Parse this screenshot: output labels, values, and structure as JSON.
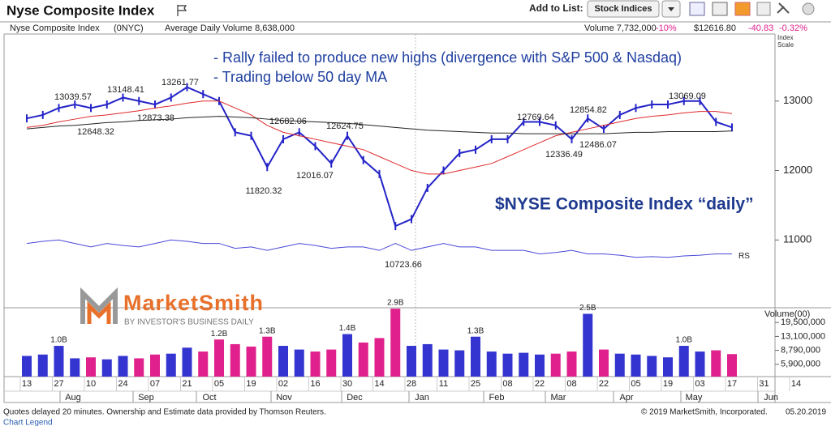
{
  "header": {
    "title": "Nyse Composite Index",
    "add_label": "Add to List:",
    "list_button": "Stock Indices"
  },
  "info_bar": {
    "name": "Nyse Composite Index",
    "symbol": "(0NYC)",
    "avg_volume": "Average Daily Volume 8,638,000",
    "volume": "Volume 7,732,000",
    "volume_change": "-10%",
    "price": "$12616.80",
    "change": "-40.83",
    "change_pct": "-0.32%",
    "scale_label": "Index Scale"
  },
  "notes": [
    "- Rally failed to produce new highs (divergence with S&P 500 & Nasdaq)",
    "- Trading below 50 day MA"
  ],
  "chart_label": "$NYSE Composite Index “daily”",
  "logo": {
    "name": "MarketSmith",
    "tagline": "BY INVESTOR'S BUSINESS DAILY"
  },
  "chart_data": [
    {
      "type": "line",
      "ylim": [
        10024,
        13965
      ],
      "yticks": [
        11000,
        12000,
        13000
      ],
      "series": [
        {
          "color": "#2424c8",
          "values": [
            12750,
            12800,
            12900,
            12950,
            12900,
            12950,
            13050,
            13000,
            12950,
            13050,
            13200,
            13100,
            13000,
            12550,
            12500,
            12050,
            12450,
            12550,
            12350,
            12100,
            12500,
            12150,
            11950,
            11200,
            11300,
            11750,
            12000,
            12250,
            12300,
            12450,
            12450,
            12700,
            12700,
            12650,
            12450,
            12750,
            12600,
            12800,
            12900,
            12950,
            12950,
            13000,
            13000,
            12700,
            12620,
            null,
            null,
            null,
            null
          ]
        },
        {
          "color": "#e0282a",
          "values": [
            12620,
            12650,
            12700,
            12740,
            12780,
            12800,
            12830,
            12860,
            12900,
            12930,
            12970,
            13000,
            13000,
            12900,
            12800,
            12650,
            12550,
            12500,
            12450,
            12400,
            12350,
            12300,
            12200,
            12100,
            12000,
            11950,
            11950,
            12000,
            12050,
            12100,
            12200,
            12300,
            12400,
            12500,
            12550,
            12600,
            12650,
            12700,
            12750,
            12780,
            12800,
            12830,
            12850,
            12850,
            12820,
            null,
            null,
            null,
            null
          ]
        },
        {
          "color": "#222222",
          "values": [
            12600,
            12620,
            12640,
            12650,
            12670,
            12690,
            12700,
            12720,
            12730,
            12740,
            12760,
            12770,
            12780,
            12770,
            12760,
            12740,
            12720,
            12710,
            12700,
            12690,
            12680,
            12660,
            12640,
            12620,
            12600,
            12580,
            12570,
            12560,
            12550,
            12540,
            12540,
            12530,
            12530,
            12530,
            12530,
            12530,
            12530,
            12540,
            12550,
            12550,
            12560,
            12560,
            12560,
            12560,
            12570,
            null,
            null,
            null,
            null
          ]
        },
        {
          "name": "RS",
          "color": "#4848d8",
          "values": [
            10950,
            10980,
            11000,
            10950,
            10900,
            10950,
            10920,
            10900,
            10950,
            11000,
            10980,
            10950,
            10950,
            10880,
            10900,
            10850,
            10900,
            10950,
            10920,
            10880,
            10900,
            10900,
            10850,
            10950,
            10850,
            10900,
            10950,
            10900,
            10900,
            10850,
            10850,
            10850,
            10800,
            10820,
            10850,
            10800,
            10800,
            10780,
            10750,
            10760,
            10750,
            10770,
            10780,
            10800,
            10800,
            null,
            null,
            null,
            null
          ]
        }
      ],
      "price_labels": [
        13039.57,
        13148.41,
        13261.77,
        12648.32,
        12873.38,
        11820.32,
        12682.06,
        12016.07,
        12624.75,
        10723.66,
        12769.64,
        12854.82,
        12336.49,
        12486.07,
        13069.09
      ]
    },
    {
      "type": "bar",
      "y_label": "Volume(00)",
      "log_scale": true,
      "color": "#3434d0",
      "down_color": "#e0208c",
      "ylim": [
        4150000,
        28400000
      ],
      "yticks": [
        {
          "value": 19500000,
          "label": "19,500,000"
        },
        {
          "value": 13100000,
          "label": "13,100,000"
        },
        {
          "value": 8790000,
          "label": "8,790,000"
        },
        {
          "value": 5900000,
          "label": "5,900,000"
        }
      ],
      "categories": [
        "13",
        null,
        "27",
        null,
        "10",
        null,
        "24",
        null,
        "07",
        null,
        "21",
        null,
        "05",
        null,
        "19",
        null,
        "02",
        null,
        "16",
        null,
        "30",
        null,
        "14",
        null,
        "28",
        null,
        "11",
        null,
        "25",
        null,
        "08",
        null,
        "22",
        null,
        "08",
        null,
        "22",
        null,
        "05",
        null,
        "19",
        null,
        "03",
        null,
        "17",
        null,
        "31",
        null,
        "14"
      ],
      "months": [
        "Aug",
        "Sep",
        "Oct",
        "Nov",
        "Dec",
        "Jan",
        "Feb",
        "Mar",
        "Apr",
        "May",
        "Jun"
      ],
      "values": [
        7500000,
        7800000,
        10000000,
        7000000,
        7200000,
        6800000,
        7500000,
        7000000,
        7800000,
        8000000,
        9500000,
        8500000,
        12000000,
        10500000,
        9800000,
        13000000,
        10000000,
        9000000,
        8500000,
        9000000,
        14000000,
        11000000,
        12500000,
        29000000,
        10000000,
        10500000,
        9000000,
        8800000,
        13000000,
        8500000,
        8000000,
        8200000,
        7800000,
        8000000,
        8500000,
        25000000,
        9000000,
        8000000,
        7800000,
        7500000,
        7200000,
        10000000,
        8500000,
        8800000,
        7900000,
        null,
        null,
        null,
        null
      ],
      "value_labels": [
        null,
        null,
        "1.0B",
        null,
        null,
        null,
        null,
        null,
        null,
        null,
        null,
        null,
        "1.2B",
        null,
        null,
        "1.3B",
        null,
        null,
        null,
        null,
        "1.4B",
        null,
        null,
        "2.9B",
        null,
        null,
        null,
        null,
        "1.3B",
        null,
        null,
        null,
        null,
        null,
        null,
        "2.5B",
        null,
        null,
        null,
        null,
        null,
        "1.0B",
        null,
        null,
        null,
        null,
        null,
        null,
        null
      ]
    }
  ],
  "footer": {
    "source": "Quotes delayed 20 minutes. Ownership and Estimate data provided by Thomson Reuters.",
    "copyright": "© 2019 MarketSmith, Incorporated.",
    "date": "05.20.2019",
    "legend_link": "Chart Legend"
  }
}
